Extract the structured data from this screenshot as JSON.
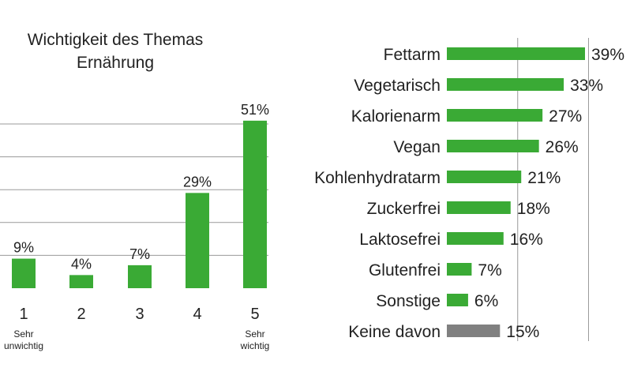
{
  "chart_data": [
    {
      "type": "bar",
      "title_lines": [
        "Wichtigkeit des Themas",
        "Ernährung"
      ],
      "categories": [
        "1",
        "2",
        "3",
        "4",
        "5"
      ],
      "values": [
        9,
        4,
        7,
        29,
        51
      ],
      "value_labels": [
        "9%",
        "4%",
        "7%",
        "29%",
        "51%"
      ],
      "notes": [
        {
          "category": "1",
          "lines": [
            "Sehr",
            "unwichtig"
          ]
        },
        {
          "category": "5",
          "lines": [
            "Sehr",
            "wichtig"
          ]
        }
      ],
      "ylim": [
        0,
        50
      ],
      "grid": true,
      "bar_color": "#3aaa35"
    },
    {
      "type": "bar",
      "orientation": "horizontal",
      "categories": [
        "Fettarm",
        "Vegetarisch",
        "Kalorienarm",
        "Vegan",
        "Kohlenhydratarm",
        "Zuckerfrei",
        "Laktosefrei",
        "Glutenfrei",
        "Sonstige",
        "Keine davon"
      ],
      "values": [
        39,
        33,
        27,
        26,
        21,
        18,
        16,
        7,
        6,
        15
      ],
      "value_labels": [
        "39%",
        "33%",
        "27%",
        "26%",
        "21%",
        "18%",
        "16%",
        "7%",
        "6%",
        "15%"
      ],
      "bar_colors": [
        "#3aaa35",
        "#3aaa35",
        "#3aaa35",
        "#3aaa35",
        "#3aaa35",
        "#3aaa35",
        "#3aaa35",
        "#3aaa35",
        "#3aaa35",
        "#808080"
      ],
      "xlim": [
        0,
        39
      ],
      "reference_lines": [
        20,
        40
      ]
    }
  ]
}
